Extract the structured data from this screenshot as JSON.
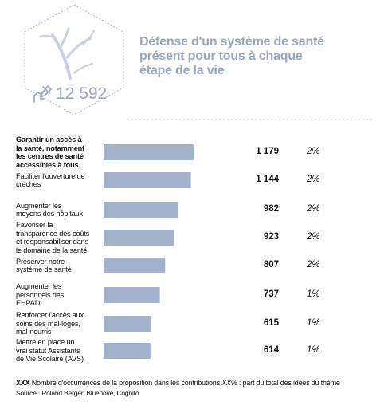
{
  "header": {
    "title_lines": [
      "Défense d'un système de santé",
      "présent pour tous à chaque",
      "étape de la vie"
    ],
    "count": "12 592",
    "icon": "hand-writing-icon",
    "illustration": "tree-branch-illustration"
  },
  "colors": {
    "bar": "#a3b2cb",
    "hex_stroke": "#aab4c6",
    "accent_text": "#9aa6bd"
  },
  "chart_data": {
    "type": "bar",
    "orientation": "horizontal",
    "categories": [
      "Garantir un accès à la santé, notamment les centres de santé accessibles à tous",
      "Faciliter l'ouverture de crèches",
      "Augmenter les moyens des hôpitaux",
      "Favoriser la transparence des coûts et responsabiliser dans le domaine de la santé",
      "Préserver notre système de santé",
      "Augmenter les personnels des EHPAD",
      "Renforcer l'accès aux soins des mal-logés, mal-nourris",
      "Mettre en place un vrai statut Assistants de Vie Scolaire (AVS)"
    ],
    "category_lines": [
      [
        "Garantir un accès à",
        "la santé, notamment",
        "les centres de santé",
        "accessibles à tous"
      ],
      [
        "Faciliter l'ouverture de",
        "crèches"
      ],
      [
        "Augmenter les",
        "moyens des hôpitaux"
      ],
      [
        "Favoriser la",
        "transparence des coûts",
        "et responsabiliser dans",
        "le domaine de la santé"
      ],
      [
        "Préserver notre",
        "système de santé"
      ],
      [
        "Augmenter les",
        "personnels des",
        "EHPAD"
      ],
      [
        "Renforcer l'accès aux",
        "soins des mal-logés,",
        "mal-nourris"
      ],
      [
        "Mettre en place un",
        "vrai statut Assistants",
        "de Vie Scolaire (AVS)"
      ]
    ],
    "values": [
      1179,
      1144,
      982,
      923,
      807,
      737,
      615,
      614
    ],
    "value_labels": [
      "1 179",
      "1 144",
      "982",
      "923",
      "807",
      "737",
      "615",
      "614"
    ],
    "shares": [
      "2%",
      "2%",
      "2%",
      "2%",
      "2%",
      "1%",
      "1%",
      "1%"
    ]
  },
  "legend": {
    "count_key": "XXX",
    "count_desc": "Nombre d'occurrences de la proposition dans les contributions",
    "share_key": "XX%",
    "share_desc": ": part du total des idées du thème"
  },
  "source": "Source : Roland Berger, Bluenove, Cognito"
}
